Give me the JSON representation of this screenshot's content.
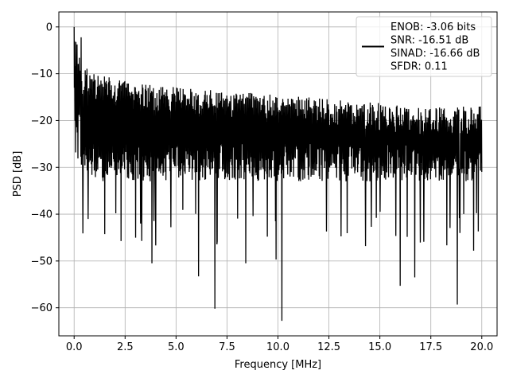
{
  "chart_data": {
    "type": "line",
    "xlabel": "Frequency [MHz]",
    "ylabel": "PSD [dB]",
    "xlim": [
      -0.75,
      20.75
    ],
    "ylim": [
      -66,
      3.2
    ],
    "xticks": [
      0.0,
      2.5,
      5.0,
      7.5,
      10.0,
      12.5,
      15.0,
      17.5,
      20.0
    ],
    "xtick_labels": [
      "0.0",
      "2.5",
      "5.0",
      "7.5",
      "10.0",
      "12.5",
      "15.0",
      "17.5",
      "20.0"
    ],
    "yticks": [
      0,
      -10,
      -20,
      -30,
      -40,
      -50,
      -60
    ],
    "ytick_labels": [
      "0",
      "−10",
      "−20",
      "−30",
      "−40",
      "−50",
      "−60"
    ],
    "grid": true,
    "legend_position": "top-right",
    "line_color": "#000000",
    "series": [
      {
        "name": "ENOB: -3.06 bits\nSNR: -16.51 dB\nSINAD: -16.66 dB\nSFDR: 0.11",
        "legend_lines": [
          "ENOB: -3.06 bits",
          "SNR: -16.51 dB",
          "SINAD: -16.66 dB",
          "SFDR: 0.11"
        ],
        "x_range": [
          0.0,
          20.0
        ],
        "peak": {
          "x": 0.0,
          "y": 0.0
        },
        "upper_envelope_db": [
          -8,
          -12,
          -13,
          -14,
          -15,
          -16,
          -17,
          -17
        ],
        "typical_band_db": [
          -29,
          -13
        ],
        "deep_dips": [
          {
            "x": 3.8,
            "y": -50.5
          },
          {
            "x": 6.1,
            "y": -53.3
          },
          {
            "x": 6.9,
            "y": -60.2
          },
          {
            "x": 8.4,
            "y": -50.5
          },
          {
            "x": 9.9,
            "y": -49.7
          },
          {
            "x": 10.2,
            "y": -62.8
          },
          {
            "x": 16.0,
            "y": -55.3
          },
          {
            "x": 16.7,
            "y": -53.5
          },
          {
            "x": 18.8,
            "y": -59.3
          },
          {
            "x": 19.6,
            "y": -47.8
          }
        ]
      }
    ]
  }
}
